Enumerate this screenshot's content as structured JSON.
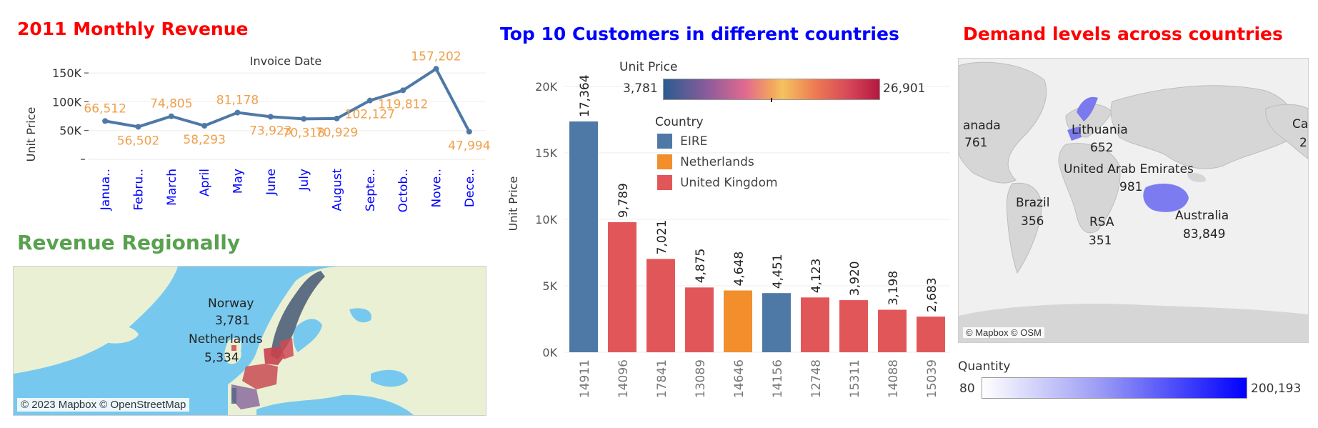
{
  "line_panel": {
    "title": "2011 Monthly Revenue",
    "title_color": "#ff0000",
    "line_color": "#4e79a7",
    "label_color": "#f0a04b",
    "xtick_color": "#0000ff",
    "chart_data": {
      "type": "line",
      "title": "",
      "xlabel": "Invoice Date",
      "ylabel": "Unit Price",
      "categories": [
        "Janua..",
        "Febru..",
        "March",
        "April",
        "May",
        "June",
        "July",
        "August",
        "Septe..",
        "Octob..",
        "Nove..",
        "Dece.."
      ],
      "values": [
        66512,
        56502,
        74805,
        58293,
        81178,
        73923,
        70318,
        70929,
        102127,
        119812,
        157202,
        47994
      ],
      "data_labels": [
        "66,512",
        "56,502",
        "74,805",
        "58,293",
        "81,178",
        "73,923",
        "70,318",
        "70,929",
        "102,127",
        "119,812",
        "157,202",
        "47,994"
      ],
      "yticks": [
        50000,
        100000,
        150000
      ],
      "ytick_labels": [
        "50K",
        "100K",
        "150K"
      ],
      "ylim": [
        0,
        165000
      ],
      "grid": true
    }
  },
  "region_panel": {
    "title": "Revenue Regionally",
    "title_color": "#59a14f",
    "labels": [
      {
        "name": "Norway",
        "value": "3,781"
      },
      {
        "name": "Netherlands",
        "value": "5,334"
      }
    ],
    "credit": "© 2023 Mapbox © OpenStreetMap"
  },
  "bar_panel": {
    "title": "Top 10 Customers in different countries",
    "title_color": "#0000ff",
    "color_legend": {
      "title": "Unit Price",
      "min_label": "3,781",
      "max_label": "26,901"
    },
    "country_legend": {
      "title": "Country",
      "items": [
        {
          "label": "EIRE",
          "color": "#4e79a7"
        },
        {
          "label": "Netherlands",
          "color": "#f28e2b"
        },
        {
          "label": "United Kingdom",
          "color": "#e15759"
        }
      ]
    },
    "chart_data": {
      "type": "bar",
      "title": "",
      "ylabel": "Unit Price",
      "xlabel": "",
      "categories": [
        "14911",
        "14096",
        "17841",
        "13089",
        "14646",
        "14156",
        "12748",
        "15311",
        "14088",
        "15039"
      ],
      "values": [
        17364,
        9789,
        7021,
        4875,
        4648,
        4451,
        4123,
        3920,
        3198,
        2683
      ],
      "data_labels": [
        "17,364",
        "9,789",
        "7,021",
        "4,875",
        "4,648",
        "4,451",
        "4,123",
        "3,920",
        "3,198",
        "2,683"
      ],
      "bar_colors": [
        "#4e79a7",
        "#e15759",
        "#e15759",
        "#e15759",
        "#f28e2b",
        "#4e79a7",
        "#e15759",
        "#e15759",
        "#e15759",
        "#e15759"
      ],
      "yticks": [
        0,
        5000,
        10000,
        15000,
        20000
      ],
      "ytick_labels": [
        "0K",
        "5K",
        "10K",
        "15K",
        "20K"
      ],
      "ylim": [
        0,
        21500
      ],
      "grid": true
    }
  },
  "demand_panel": {
    "title": "Demand levels across countries",
    "title_color": "#ff0000",
    "labels": [
      {
        "name": "anada",
        "value": "761"
      },
      {
        "name": "Lithuania",
        "value": "652"
      },
      {
        "name": "United Arab Emirates",
        "value": "981"
      },
      {
        "name": "Brazil",
        "value": "356"
      },
      {
        "name": "RSA",
        "value": "351"
      },
      {
        "name": "Australia",
        "value": "83,849"
      },
      {
        "name": "Ca",
        "value": "2"
      }
    ],
    "credit": "© Mapbox © OSM",
    "quantity_legend": {
      "title": "Quantity",
      "min_label": "80",
      "max_label": "200,193"
    }
  }
}
